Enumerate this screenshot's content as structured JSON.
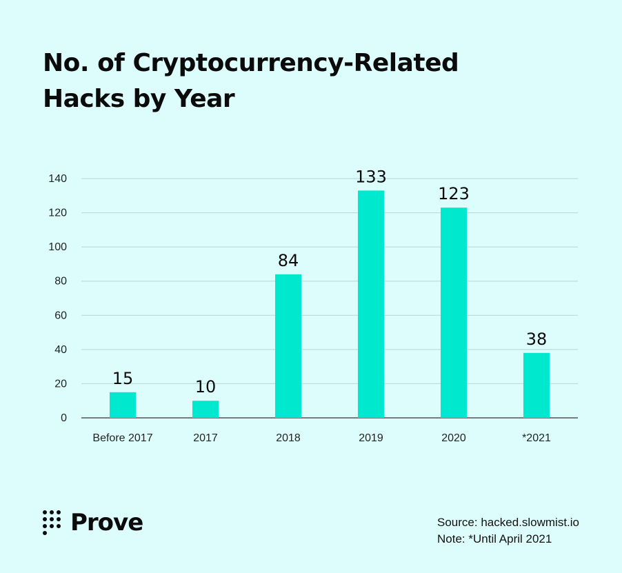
{
  "title_line1": "No. of Cryptocurrency-Related",
  "title_line2": "Hacks by Year",
  "brand": {
    "name": "Prove"
  },
  "footer": {
    "source": "Source: hacked.slowmist.io",
    "note": "Note: *Until April 2021"
  },
  "colors": {
    "bar": "#00e9cf",
    "background": "#dcfdfc",
    "grid": "#b8d4d6",
    "axis": "#333333"
  },
  "chart_data": {
    "type": "bar",
    "categories": [
      "Before 2017",
      "2017",
      "2018",
      "2019",
      "2020",
      "*2021"
    ],
    "values": [
      15,
      10,
      84,
      133,
      123,
      38
    ],
    "data_labels": [
      "15",
      "10",
      "84",
      "133",
      "123",
      "38"
    ],
    "ylim": [
      0,
      140
    ],
    "yticks": [
      0,
      20,
      40,
      60,
      80,
      100,
      120,
      140
    ],
    "grid": true
  }
}
